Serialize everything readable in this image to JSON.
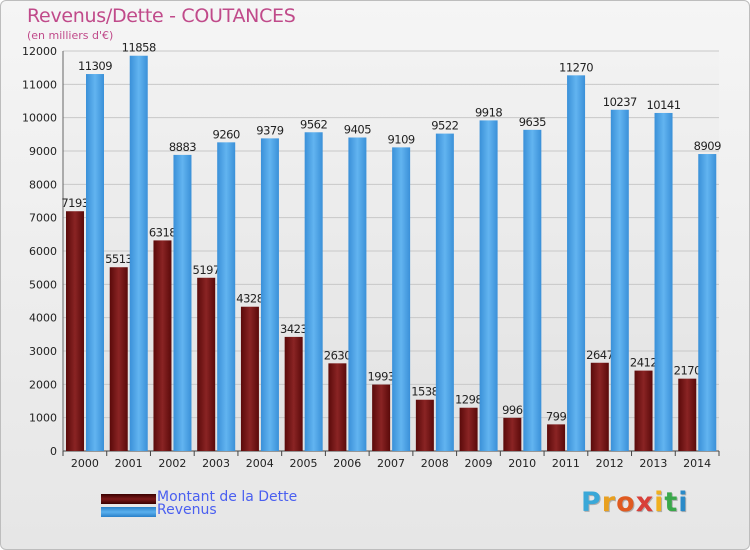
{
  "chart_data": {
    "type": "bar",
    "title": "Revenus/Dette - COUTANCES",
    "subtitle": "(en milliers d'€)",
    "categories": [
      "2000",
      "2001",
      "2002",
      "2003",
      "2004",
      "2005",
      "2006",
      "2007",
      "2008",
      "2009",
      "2010",
      "2011",
      "2012",
      "2013",
      "2014"
    ],
    "series": [
      {
        "name": "Montant de la Dette",
        "color": "#7a1818",
        "values": [
          7193,
          5513,
          6318,
          5197,
          4328,
          3423,
          2630,
          1993,
          1538,
          1298,
          996,
          799,
          2647,
          2412,
          2170
        ],
        "labels": [
          "7193",
          "5513",
          "6318",
          "5197",
          "4328",
          "3423",
          "2630",
          "1993",
          "1538",
          "1298",
          "996",
          "799",
          "2647",
          "2412",
          "2170"
        ]
      },
      {
        "name": "Revenus",
        "color": "#4ea6e8",
        "values": [
          11309,
          11858,
          8883,
          9260,
          9379,
          9562,
          9405,
          9109,
          9522,
          9918,
          9635,
          11270,
          10237,
          10141,
          8909
        ],
        "labels": [
          "11309",
          "11858",
          "8883",
          "9260",
          "9379",
          "9562",
          "9405",
          "9109",
          "9522",
          "9918",
          "9635",
          "11270",
          "10237",
          "10141",
          "8909"
        ]
      }
    ],
    "yticks": [
      0,
      1000,
      2000,
      3000,
      4000,
      5000,
      6000,
      7000,
      8000,
      9000,
      10000,
      11000,
      12000
    ],
    "ylim": [
      0,
      12000
    ],
    "grid": true,
    "legend_position": "bottom-left"
  },
  "legend": {
    "items": [
      "Montant de la Dette",
      "Revenus"
    ]
  },
  "logo": {
    "letters": [
      "P",
      "r",
      "o",
      "x",
      "i",
      "t",
      "i"
    ],
    "colors": [
      "#3aa8d8",
      "#e8a020",
      "#e05a20",
      "#d8403a",
      "#f0b020",
      "#3aa84a",
      "#2a8ac8"
    ]
  }
}
